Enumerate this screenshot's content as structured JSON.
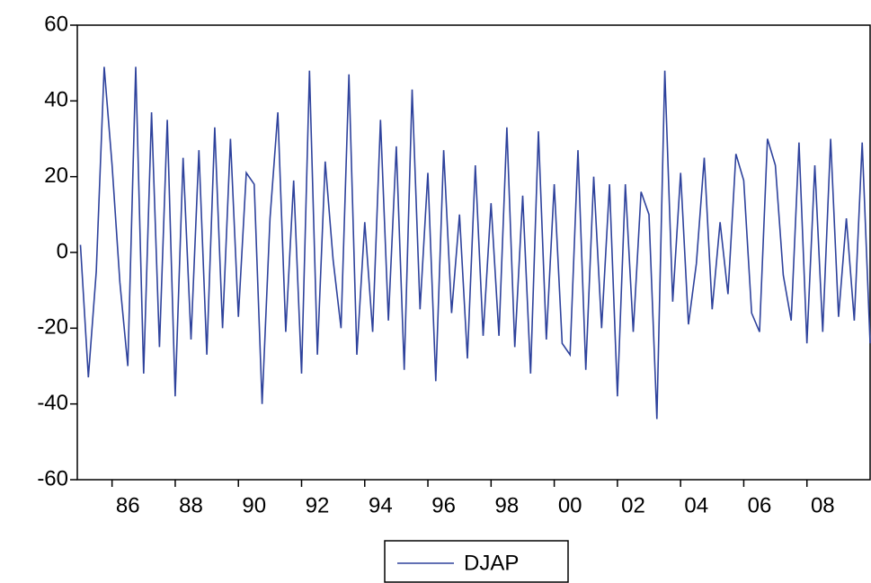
{
  "chart_data": {
    "type": "line",
    "x": [
      1985,
      1985.25,
      1985.5,
      1985.75,
      1986,
      1986.25,
      1986.5,
      1986.75,
      1987,
      1987.25,
      1987.5,
      1987.75,
      1988,
      1988.25,
      1988.5,
      1988.75,
      1989,
      1989.25,
      1989.5,
      1989.75,
      1990,
      1990.25,
      1990.5,
      1990.75,
      1991,
      1991.25,
      1991.5,
      1991.75,
      1992,
      1992.25,
      1992.5,
      1992.75,
      1993,
      1993.25,
      1993.5,
      1993.75,
      1994,
      1994.25,
      1994.5,
      1994.75,
      1995,
      1995.25,
      1995.5,
      1995.75,
      1996,
      1996.25,
      1996.5,
      1996.75,
      1997,
      1997.25,
      1997.5,
      1997.75,
      1998,
      1998.25,
      1998.5,
      1998.75,
      1999,
      1999.25,
      1999.5,
      1999.75,
      2000,
      2000.25,
      2000.5,
      2000.75,
      2001,
      2001.25,
      2001.5,
      2001.75,
      2002,
      2002.25,
      2002.5,
      2002.75,
      2003,
      2003.25,
      2003.5,
      2003.75,
      2004,
      2004.25,
      2004.5,
      2004.75,
      2005,
      2005.25,
      2005.5,
      2005.75,
      2006,
      2006.25,
      2006.5,
      2006.75,
      2007,
      2007.25,
      2007.5,
      2007.75,
      2008,
      2008.25,
      2008.5,
      2008.75,
      2009,
      2009.25,
      2009.5,
      2009.75,
      2010
    ],
    "series": [
      {
        "name": "DJAP",
        "color": "#2e429c",
        "values": [
          2,
          -33,
          -5,
          49,
          23,
          -8,
          -30,
          49,
          -32,
          37,
          -25,
          35,
          -38,
          25,
          -23,
          27,
          -27,
          33,
          -20,
          30,
          -17,
          21,
          18,
          -40,
          9,
          37,
          -21,
          19,
          -32,
          48,
          -27,
          24,
          -2,
          -20,
          47,
          -27,
          8,
          -21,
          35,
          -18,
          28,
          -31,
          43,
          -15,
          21,
          -34,
          27,
          -16,
          10,
          -28,
          23,
          -22,
          13,
          -22,
          33,
          -25,
          15,
          -32,
          32,
          -23,
          18,
          -24,
          -27,
          27,
          -31,
          20,
          -20,
          18,
          -38,
          18,
          -21,
          16,
          10,
          -44,
          48,
          -13,
          21,
          -19,
          -3,
          25,
          -15,
          8,
          -11,
          26,
          19,
          -16,
          -21,
          30,
          23,
          -6,
          -18,
          29,
          -24,
          23,
          -21,
          30,
          -17,
          9,
          -18,
          29,
          -24
        ]
      }
    ],
    "xlim": [
      1984.9,
      2010
    ],
    "xticks": [
      {
        "value": 1986,
        "label": "86"
      },
      {
        "value": 1988,
        "label": "88"
      },
      {
        "value": 1990,
        "label": "90"
      },
      {
        "value": 1992,
        "label": "92"
      },
      {
        "value": 1994,
        "label": "94"
      },
      {
        "value": 1996,
        "label": "96"
      },
      {
        "value": 1998,
        "label": "98"
      },
      {
        "value": 2000,
        "label": "00"
      },
      {
        "value": 2002,
        "label": "02"
      },
      {
        "value": 2004,
        "label": "04"
      },
      {
        "value": 2006,
        "label": "06"
      },
      {
        "value": 2008,
        "label": "08"
      }
    ],
    "ylim": [
      -60,
      60
    ],
    "yticks": [
      -60,
      -40,
      -20,
      0,
      20,
      40,
      60
    ],
    "legend": "bottom"
  }
}
